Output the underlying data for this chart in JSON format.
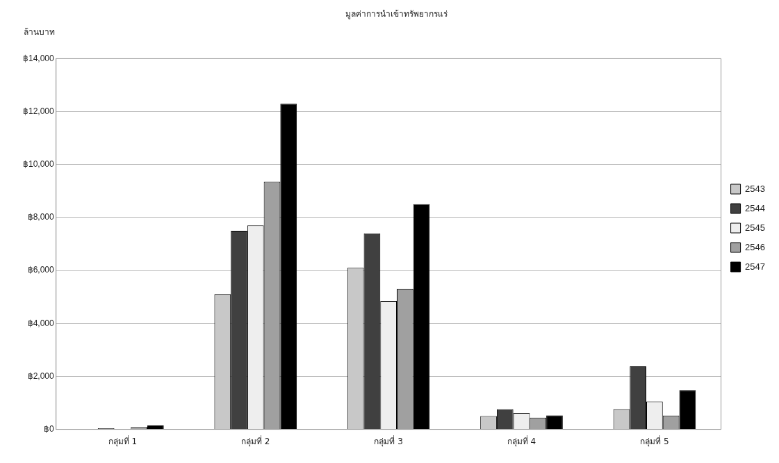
{
  "chart_data": {
    "type": "bar",
    "title": "มูลค่าการนำเข้าทรัพยากรแร่",
    "ylabel": "ล้านบาท",
    "categories": [
      "กลุ่มที่ 1",
      "กลุ่มที่ 2",
      "กลุ่มที่ 3",
      "กลุ่มที่ 4",
      "กลุ่มที่ 5"
    ],
    "series": [
      {
        "name": "2543",
        "color": "#c8c8c8",
        "values": [
          null,
          5100,
          6100,
          500,
          760
        ]
      },
      {
        "name": "2544",
        "color": "#404040",
        "values": [
          40,
          7500,
          7400,
          760,
          2380
        ]
      },
      {
        "name": "2545",
        "color": "#eeeeee",
        "values": [
          null,
          7700,
          4850,
          620,
          1050
        ]
      },
      {
        "name": "2546",
        "color": "#a0a0a0",
        "values": [
          90,
          9350,
          5300,
          440,
          520
        ]
      },
      {
        "name": "2547",
        "color": "#000000",
        "values": [
          150,
          12300,
          8500,
          530,
          1480
        ]
      }
    ],
    "ylim": [
      0,
      14000
    ],
    "yticks": [
      {
        "value": 0,
        "label": "฿0"
      },
      {
        "value": 2000,
        "label": "฿2,000"
      },
      {
        "value": 4000,
        "label": "฿4,000"
      },
      {
        "value": 6000,
        "label": "฿6,000"
      },
      {
        "value": 8000,
        "label": "฿8,000"
      },
      {
        "value": 10000,
        "label": "฿10,000"
      },
      {
        "value": 12000,
        "label": "฿12,000"
      },
      {
        "value": 14000,
        "label": "฿14,000"
      }
    ],
    "grid": "y",
    "legend": "right"
  }
}
